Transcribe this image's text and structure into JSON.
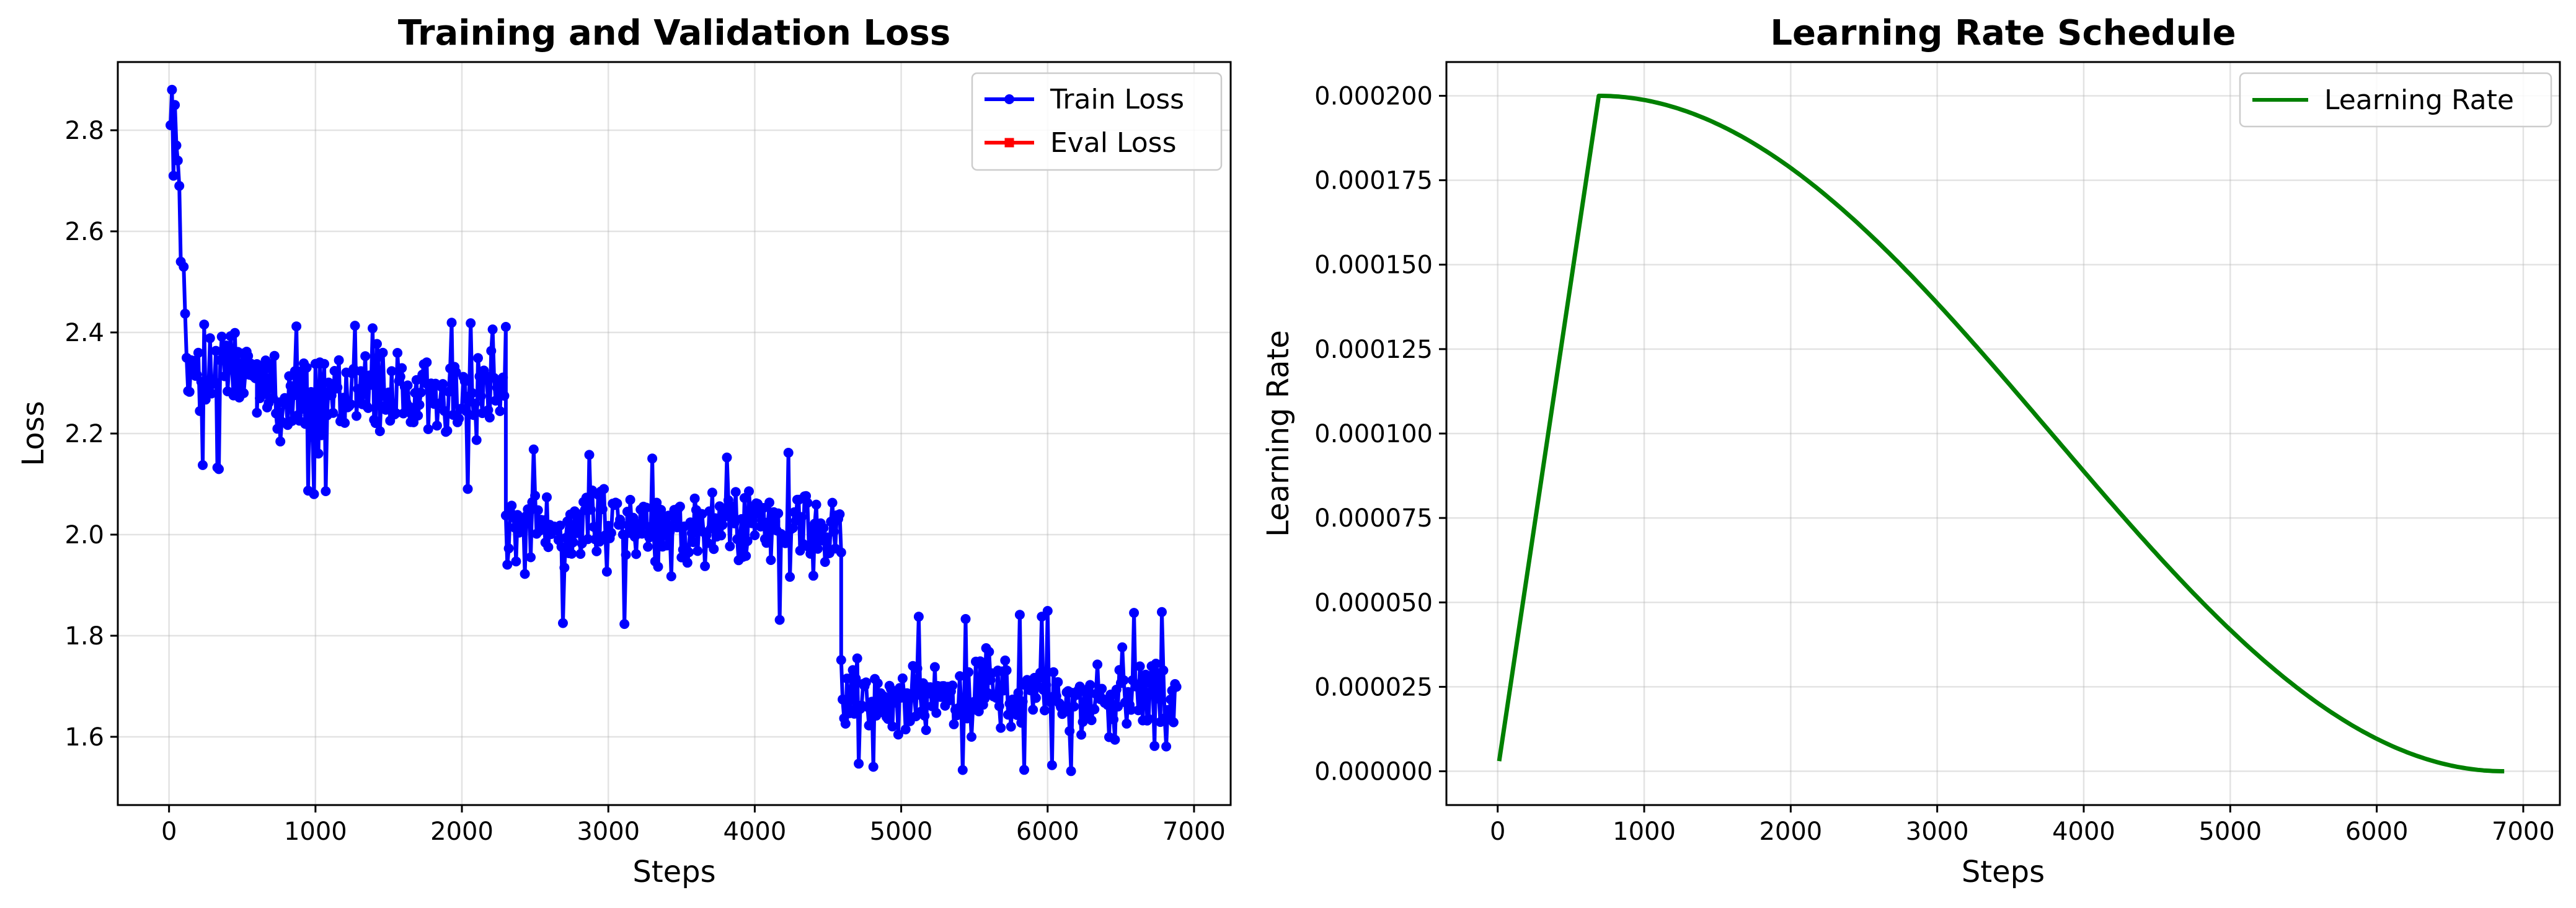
{
  "chart_data": [
    {
      "type": "line",
      "title": "Training and Validation Loss",
      "xlabel": "Steps",
      "ylabel": "Loss",
      "xlim": [
        -350,
        7250
      ],
      "ylim": [
        1.465,
        2.935
      ],
      "xticks": [
        0,
        1000,
        2000,
        3000,
        4000,
        5000,
        6000,
        7000
      ],
      "yticks": [
        1.6,
        1.8,
        2.0,
        2.2,
        2.4,
        2.6,
        2.8
      ],
      "grid": true,
      "legend": "upper-right",
      "series": [
        {
          "name": "Train Loss",
          "color": "#0000ff",
          "marker": "circle",
          "segments": [
            {
              "x_start": 10,
              "x_end": 30,
              "points": [
                [
                  10,
                  2.81
                ],
                [
                  20,
                  2.88
                ],
                [
                  30,
                  2.71
                ]
              ]
            },
            {
              "x_start": 40,
              "x_end": 100,
              "points": [
                [
                  40,
                  2.85
                ],
                [
                  50,
                  2.77
                ],
                [
                  60,
                  2.74
                ],
                [
                  70,
                  2.69
                ],
                [
                  80,
                  2.54
                ],
                [
                  100,
                  2.53
                ]
              ]
            },
            {
              "x_start": 110,
              "x_end": 600,
              "mean": 2.33,
              "amplitude": 0.06,
              "min": 2.12,
              "max": 2.44
            },
            {
              "x_start": 600,
              "x_end": 2300,
              "mean": 2.28,
              "amplitude": 0.07,
              "min": 2.08,
              "max": 2.42
            },
            {
              "x_start": 2300,
              "x_end": 4590,
              "mean": 2.015,
              "amplitude": 0.065,
              "min": 1.82,
              "max": 2.17
            },
            {
              "x_start": 4590,
              "x_end": 6880,
              "mean": 1.675,
              "amplitude": 0.065,
              "min": 1.53,
              "max": 1.85
            }
          ]
        },
        {
          "name": "Eval Loss",
          "color": "#ff0000",
          "marker": "square",
          "points": []
        }
      ]
    },
    {
      "type": "line",
      "title": "Learning Rate Schedule",
      "xlabel": "Steps",
      "ylabel": "Learning Rate",
      "xlim": [
        -350,
        7250
      ],
      "ylim": [
        -1e-05,
        0.00021
      ],
      "xticks": [
        0,
        1000,
        2000,
        3000,
        4000,
        5000,
        6000,
        7000
      ],
      "yticks": [
        "0.000000",
        "0.000025",
        "0.000050",
        "0.000075",
        "0.000100",
        "0.000125",
        "0.000150",
        "0.000175",
        "0.000200"
      ],
      "grid": true,
      "legend": "upper-right",
      "series": [
        {
          "name": "Learning Rate",
          "color": "#008000",
          "schedule": "linear warmup then cosine decay",
          "points": [
            [
              10,
              3e-06
            ],
            [
              690,
              0.0002
            ],
            [
              1000,
              0.000198
            ],
            [
              1500,
              0.00019
            ],
            [
              2000,
              0.000176
            ],
            [
              2500,
              0.000157
            ],
            [
              3000,
              0.000134
            ],
            [
              3500,
              0.000109
            ],
            [
              4000,
              8.4e-05
            ],
            [
              4500,
              5.9e-05
            ],
            [
              5000,
              3.7e-05
            ],
            [
              5500,
              1.9e-05
            ],
            [
              6000,
              6.5e-06
            ],
            [
              6500,
              8e-07
            ],
            [
              6870,
              0.0
            ]
          ]
        }
      ]
    }
  ]
}
